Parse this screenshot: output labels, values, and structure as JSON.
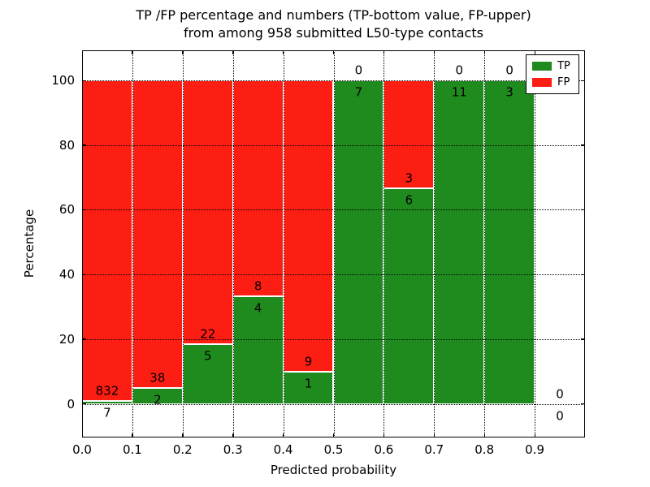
{
  "title": {
    "line1": "TP /FP percentage and numbers (TP-bottom value, FP-upper)",
    "line2": "from among 958 submitted L50-type contacts"
  },
  "axes": {
    "xlabel": "Predicted probability",
    "ylabel": "Percentage"
  },
  "legend": {
    "items": [
      {
        "label": "TP",
        "color": "#1f8b1f"
      },
      {
        "label": "FP",
        "color": "#fc1d13"
      }
    ]
  },
  "chart_data": {
    "type": "bar",
    "stacked": true,
    "normalized": "percent_within_bin",
    "title": "TP /FP percentage and numbers (TP-bottom value, FP-upper) from among 958 submitted L50-type contacts",
    "xlabel": "Predicted probability",
    "ylabel": "Percentage",
    "total_contacts": 958,
    "bin_edges": [
      0.0,
      0.1,
      0.2,
      0.3,
      0.4,
      0.5,
      0.6,
      0.7,
      0.8,
      0.9,
      1.0
    ],
    "xticks": [
      "0.0",
      "0.1",
      "0.2",
      "0.3",
      "0.4",
      "0.5",
      "0.6",
      "0.7",
      "0.8",
      "0.9"
    ],
    "yticks": [
      0,
      20,
      40,
      60,
      80,
      100
    ],
    "xlim": [
      0.0,
      1.0
    ],
    "ylim": [
      -10.4,
      109.3
    ],
    "grid": true,
    "legend_position": "upper right",
    "series": [
      {
        "name": "TP",
        "color": "#1f8b1f",
        "counts": [
          7,
          2,
          5,
          4,
          1,
          7,
          6,
          11,
          3,
          0
        ]
      },
      {
        "name": "FP",
        "color": "#fc1d13",
        "counts": [
          832,
          38,
          22,
          8,
          9,
          0,
          3,
          0,
          0,
          0
        ]
      }
    ],
    "tp_percent": [
      0.83,
      5.0,
      18.52,
      33.33,
      10.0,
      100.0,
      66.67,
      100.0,
      100.0,
      0.0
    ]
  }
}
